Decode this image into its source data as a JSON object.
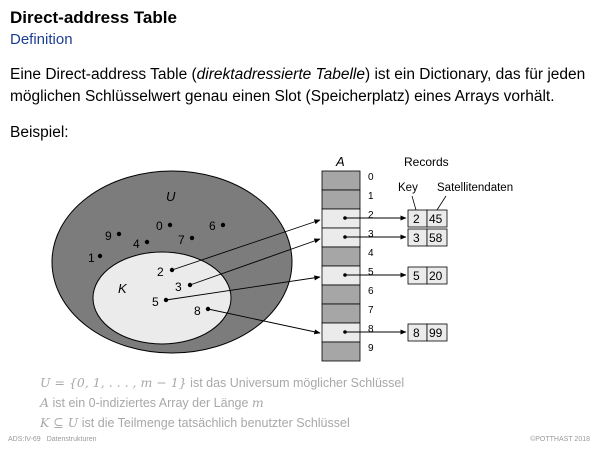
{
  "slide": {
    "title": "Direct-address Table",
    "subtitle": "Definition"
  },
  "intro": {
    "part1": "Eine Direct-address Table (",
    "emphasis": "direktadressierte Tabelle",
    "part2": ") ist ein Dictionary, das für jeden möglichen Schlüsselwert genau einen Slot (Speicherplatz) eines Arrays vorhält."
  },
  "example_label": "Beispiel:",
  "diagram": {
    "universe_label": "U",
    "used_keys_label": "K",
    "array_label": "A",
    "records_label": "Records",
    "key_label": "Key",
    "satellite_label": "Satellitendaten",
    "unused_keys": [
      "0",
      "6",
      "9",
      "4",
      "7",
      "1"
    ],
    "used_keys": [
      "2",
      "3",
      "5",
      "8"
    ],
    "slot_indices": [
      "0",
      "1",
      "2",
      "3",
      "4",
      "5",
      "6",
      "7",
      "8",
      "9"
    ],
    "records": [
      {
        "key": "2",
        "data": "45"
      },
      {
        "key": "3",
        "data": "58"
      },
      {
        "key": "5",
        "data": "20"
      },
      {
        "key": "8",
        "data": "99"
      }
    ],
    "colors": {
      "universe_fill": "#7c7c7c",
      "used_fill": "#ebebeb",
      "empty_slot": "#a6a6a6",
      "used_slot": "#ebebeb",
      "record_fill": "#ebebeb"
    }
  },
  "notes": {
    "line1_math": "U = {0, 1, . . . , m − 1}",
    "line1_text": " ist das Universum möglicher Schlüssel",
    "line2_math": "A",
    "line2_text": " ist ein 0-indiziertes Array der Länge ",
    "line2_math2": "m",
    "line3_math": "K ⊆ U",
    "line3_text": " ist die Teilmenge tatsächlich benutzter Schlüssel"
  },
  "footer": {
    "page_ref": "ADS:IV-69",
    "topic": "Datenstrukturen",
    "copyright": "©POTTHAST 2018"
  }
}
